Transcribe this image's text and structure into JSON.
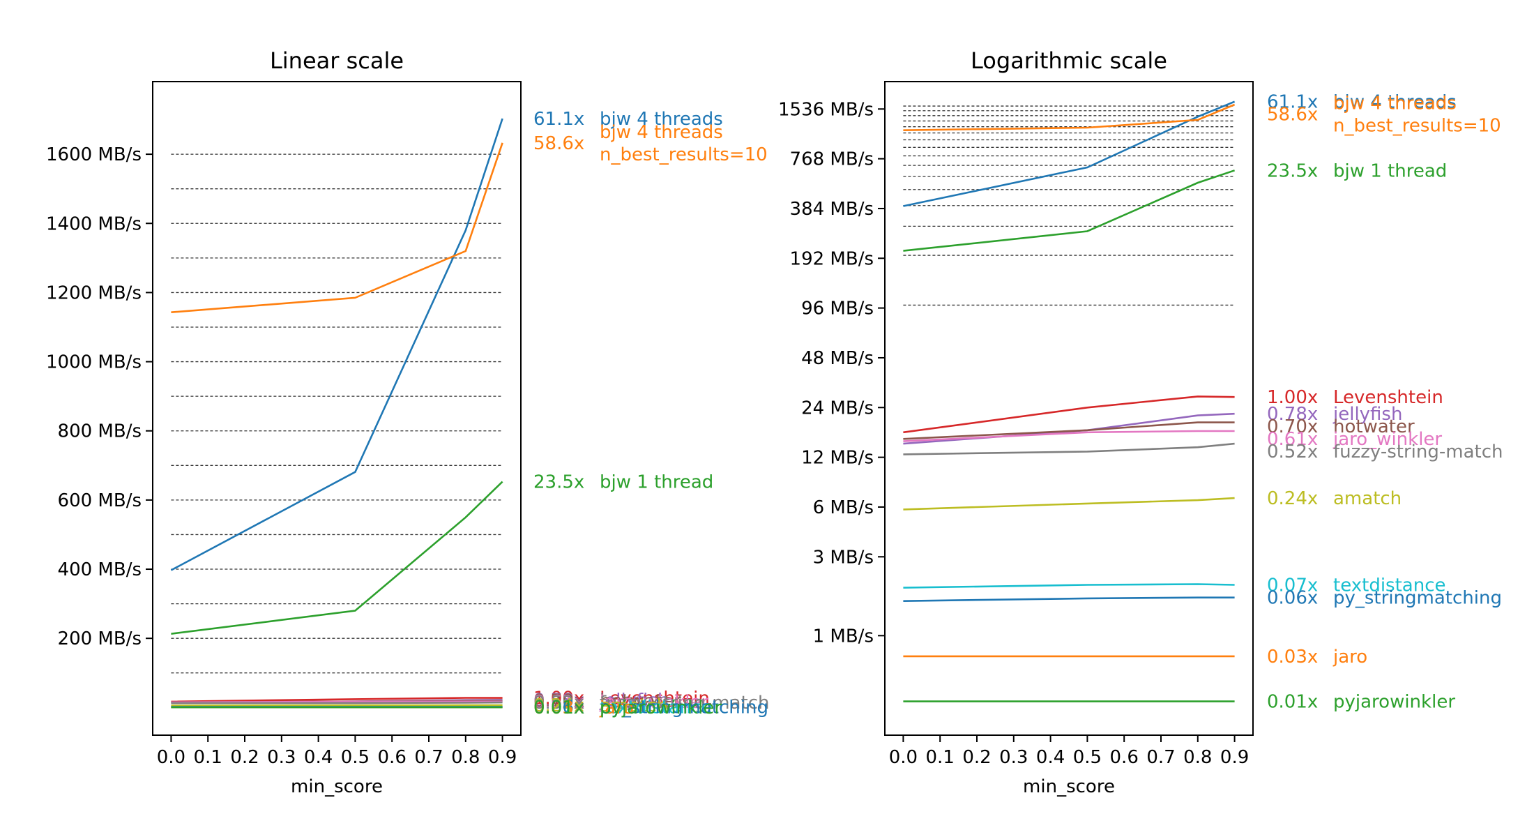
{
  "chart_data": [
    {
      "type": "line",
      "title": "Linear scale",
      "xlabel": "min_score",
      "ylabel": "",
      "x": [
        0.0,
        0.5,
        0.8,
        0.9
      ],
      "xticks": [
        "0.0",
        "0.1",
        "0.2",
        "0.3",
        "0.4",
        "0.5",
        "0.6",
        "0.7",
        "0.8",
        "0.9"
      ],
      "xlim": [
        -0.05,
        0.95
      ],
      "ylim": [
        -80,
        1810
      ],
      "yscale": "linear",
      "yticks": [
        {
          "value": 200,
          "label": "200 MB/s"
        },
        {
          "value": 400,
          "label": "400 MB/s"
        },
        {
          "value": 600,
          "label": "600 MB/s"
        },
        {
          "value": 800,
          "label": "800 MB/s"
        },
        {
          "value": 1000,
          "label": "1000 MB/s"
        },
        {
          "value": 1200,
          "label": "1200 MB/s"
        },
        {
          "value": 1400,
          "label": "1400 MB/s"
        },
        {
          "value": 1600,
          "label": "1600 MB/s"
        }
      ],
      "gridlines": [
        100,
        200,
        300,
        400,
        500,
        600,
        700,
        800,
        900,
        1000,
        1100,
        1200,
        1300,
        1400,
        1500,
        1600
      ],
      "grid_style": "dashed",
      "series": [
        {
          "name": "bjw 4 threads",
          "ratio": "61.1x",
          "color": "#1f77b4",
          "values": [
            397,
            681,
            1380,
            1703
          ]
        },
        {
          "name": "bjw 4 threads n_best_results=10",
          "name_lines": [
            "bjw 4 threads",
            "n_best_results=10"
          ],
          "ratio": "58.6x",
          "color": "#ff7f0e",
          "values": [
            1143,
            1185,
            1320,
            1633
          ]
        },
        {
          "name": "bjw 1 thread",
          "ratio": "23.5x",
          "color": "#2ca02c",
          "values": [
            213,
            280,
            550,
            653
          ]
        },
        {
          "name": "Levenshtein",
          "ratio": "1.00x",
          "color": "#d62728",
          "values": [
            17,
            24,
            28,
            27.8
          ]
        },
        {
          "name": "jellyfish",
          "ratio": "0.78x",
          "color": "#9467bd",
          "values": [
            14.5,
            17.5,
            21.5,
            22
          ]
        },
        {
          "name": "hotwater",
          "ratio": "0.70x",
          "color": "#8c564b",
          "values": [
            15.5,
            17.5,
            19.5,
            19.5
          ]
        },
        {
          "name": "jaro_winkler",
          "ratio": "0.61x",
          "color": "#e377c2",
          "values": [
            15,
            17,
            17.3,
            17.3
          ]
        },
        {
          "name": "fuzzy-string-match",
          "ratio": "0.52x",
          "color": "#7f7f7f",
          "values": [
            12.5,
            13,
            13.8,
            14.5
          ]
        },
        {
          "name": "amatch",
          "ratio": "0.24x",
          "color": "#bcbd22",
          "values": [
            5.8,
            6.3,
            6.6,
            6.8
          ]
        },
        {
          "name": "textdistance",
          "ratio": "0.07x",
          "color": "#17becf",
          "values": [
            1.95,
            2.03,
            2.05,
            2.03
          ]
        },
        {
          "name": "py_stringmatching",
          "ratio": "0.06x",
          "color": "#1f77b4",
          "values": [
            1.62,
            1.68,
            1.7,
            1.7
          ]
        },
        {
          "name": "jaro",
          "ratio": "0.03x",
          "color": "#ff7f0e",
          "values": [
            0.75,
            0.75,
            0.75,
            0.75
          ]
        },
        {
          "name": "pyjarowinkler",
          "ratio": "0.01x",
          "color": "#2ca02c",
          "values": [
            0.4,
            0.4,
            0.4,
            0.4
          ]
        }
      ]
    },
    {
      "type": "line",
      "title": "Logarithmic scale",
      "xlabel": "min_score",
      "ylabel": "",
      "x": [
        0.0,
        0.5,
        0.8,
        0.9
      ],
      "xticks": [
        "0.0",
        "0.1",
        "0.2",
        "0.3",
        "0.4",
        "0.5",
        "0.6",
        "0.7",
        "0.8",
        "0.9"
      ],
      "xlim": [
        -0.05,
        0.95
      ],
      "ylim": [
        0.25,
        2250
      ],
      "yscale": "log",
      "yticks": [
        {
          "value": 1,
          "label": "1 MB/s"
        },
        {
          "value": 3,
          "label": "3 MB/s"
        },
        {
          "value": 6,
          "label": "6 MB/s"
        },
        {
          "value": 12,
          "label": "12 MB/s"
        },
        {
          "value": 24,
          "label": "24 MB/s"
        },
        {
          "value": 48,
          "label": "48 MB/s"
        },
        {
          "value": 96,
          "label": "96 MB/s"
        },
        {
          "value": 192,
          "label": "192 MB/s"
        },
        {
          "value": 384,
          "label": "384 MB/s"
        },
        {
          "value": 768,
          "label": "768 MB/s"
        },
        {
          "value": 1536,
          "label": "1536 MB/s"
        }
      ],
      "gridlines": [
        100,
        200,
        300,
        400,
        500,
        600,
        700,
        800,
        900,
        1000,
        1100,
        1200,
        1300,
        1400,
        1500,
        1600
      ],
      "grid_style": "dashed",
      "series": [
        {
          "name": "bjw 4 threads",
          "ratio": "61.1x",
          "color": "#1f77b4",
          "values": [
            397,
            681,
            1380,
            1703
          ]
        },
        {
          "name": "bjw 4 threads n_best_results=10",
          "name_lines": [
            "bjw 4 threads",
            "n_best_results=10"
          ],
          "ratio": "58.6x",
          "color": "#ff7f0e",
          "values": [
            1143,
            1185,
            1320,
            1633
          ]
        },
        {
          "name": "bjw 1 thread",
          "ratio": "23.5x",
          "color": "#2ca02c",
          "values": [
            213,
            280,
            550,
            653
          ]
        },
        {
          "name": "Levenshtein",
          "ratio": "1.00x",
          "color": "#d62728",
          "values": [
            17,
            24,
            28,
            27.8
          ]
        },
        {
          "name": "jellyfish",
          "ratio": "0.78x",
          "color": "#9467bd",
          "values": [
            14.5,
            17.5,
            21.5,
            22
          ]
        },
        {
          "name": "hotwater",
          "ratio": "0.70x",
          "color": "#8c564b",
          "values": [
            15.5,
            17.5,
            19.5,
            19.5
          ]
        },
        {
          "name": "jaro_winkler",
          "ratio": "0.61x",
          "color": "#e377c2",
          "values": [
            15,
            17,
            17.3,
            17.3
          ]
        },
        {
          "name": "fuzzy-string-match",
          "ratio": "0.52x",
          "color": "#7f7f7f",
          "values": [
            12.5,
            13,
            13.8,
            14.5
          ]
        },
        {
          "name": "amatch",
          "ratio": "0.24x",
          "color": "#bcbd22",
          "values": [
            5.8,
            6.3,
            6.6,
            6.8
          ]
        },
        {
          "name": "textdistance",
          "ratio": "0.07x",
          "color": "#17becf",
          "values": [
            1.95,
            2.03,
            2.05,
            2.03
          ]
        },
        {
          "name": "py_stringmatching",
          "ratio": "0.06x",
          "color": "#1f77b4",
          "values": [
            1.62,
            1.68,
            1.7,
            1.7
          ]
        },
        {
          "name": "jaro",
          "ratio": "0.03x",
          "color": "#ff7f0e",
          "values": [
            0.75,
            0.75,
            0.75,
            0.75
          ]
        },
        {
          "name": "pyjarowinkler",
          "ratio": "0.01x",
          "color": "#2ca02c",
          "values": [
            0.4,
            0.4,
            0.4,
            0.4
          ]
        }
      ]
    }
  ]
}
